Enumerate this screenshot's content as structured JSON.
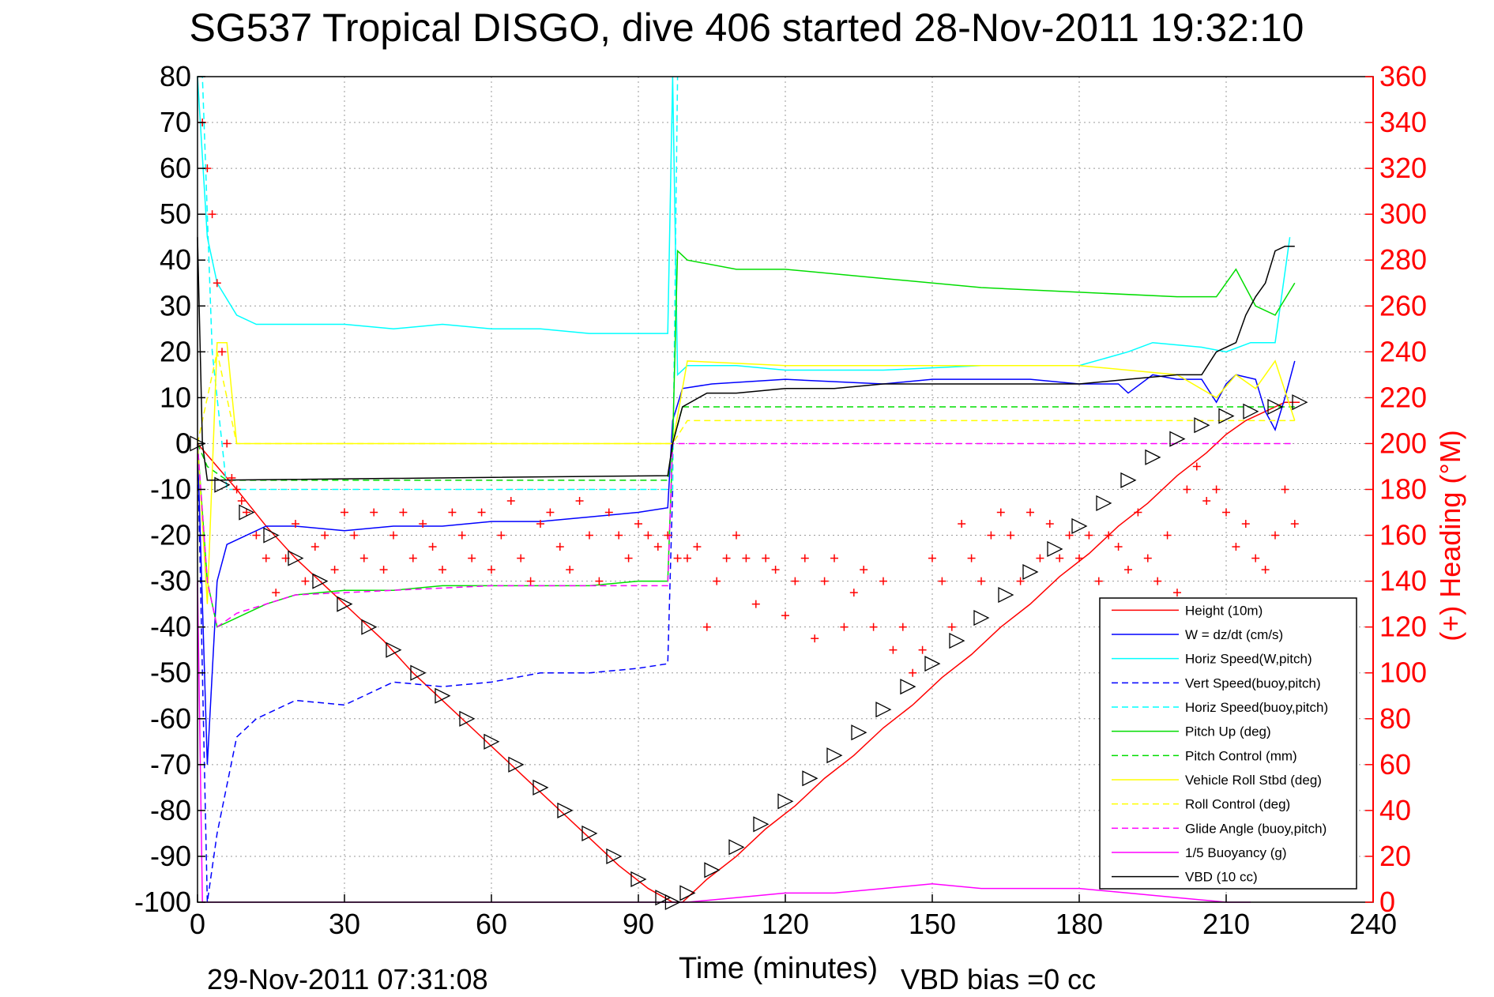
{
  "chart_data": {
    "type": "line",
    "title": "SG537 Tropical DISGO, dive 406 started 28-Nov-2011 19:32:10",
    "xlabel": "Time (minutes)",
    "ylabel_right": "(+) Heading (°M)",
    "footer_left": "29-Nov-2011 07:31:08",
    "footer_right": "VBD bias =0 cc",
    "xlim": [
      0,
      240
    ],
    "ylim": [
      -100,
      80
    ],
    "y2lim": [
      0,
      360
    ],
    "x_ticks": [
      0,
      30,
      60,
      90,
      120,
      150,
      180,
      210,
      240
    ],
    "y_ticks": [
      -100,
      -90,
      -80,
      -70,
      -60,
      -50,
      -40,
      -30,
      -20,
      -10,
      0,
      10,
      20,
      30,
      40,
      50,
      60,
      70,
      80
    ],
    "y2_ticks": [
      0,
      20,
      40,
      60,
      80,
      100,
      120,
      140,
      160,
      180,
      200,
      220,
      240,
      260,
      280,
      300,
      320,
      340,
      360
    ],
    "grid": true,
    "legend_position": "bottom-right",
    "colors": {
      "red": "#ff0000",
      "blue": "#0000ff",
      "cyan": "#00ffff",
      "green": "#00dd00",
      "yellow": "#ffff00",
      "magenta": "#ff00ff",
      "black": "#000000"
    },
    "series": [
      {
        "name": "Height (10m)",
        "color": "#ff0000",
        "style": "solid",
        "x": [
          0,
          8,
          14,
          20,
          26,
          32,
          38,
          44,
          50,
          56,
          62,
          68,
          74,
          80,
          86,
          92,
          97,
          99,
          104,
          110,
          116,
          122,
          128,
          134,
          140,
          146,
          152,
          158,
          164,
          170,
          176,
          182,
          188,
          194,
          200,
          206,
          210,
          214,
          218,
          222,
          225
        ],
        "y": [
          0,
          -10,
          -18,
          -25,
          -31,
          -37,
          -43,
          -50,
          -56,
          -62,
          -68,
          -74,
          -80,
          -86,
          -92,
          -97,
          -100,
          -100,
          -95,
          -90,
          -84,
          -79,
          -73,
          -68,
          -62,
          -57,
          -51,
          -46,
          -40,
          -35,
          -29,
          -24,
          -18,
          -13,
          -7,
          -2,
          2,
          5,
          7,
          9,
          9
        ]
      },
      {
        "name": "W = dz/dt (cm/s)",
        "color": "#0000ff",
        "style": "solid",
        "x": [
          0,
          2,
          4,
          6,
          10,
          14,
          20,
          30,
          40,
          50,
          60,
          70,
          80,
          90,
          96,
          97,
          99,
          105,
          120,
          140,
          150,
          160,
          170,
          180,
          188,
          190,
          195,
          200,
          205,
          208,
          210,
          212,
          216,
          218,
          220,
          222,
          224
        ],
        "y": [
          0,
          -70,
          -30,
          -22,
          -20,
          -18,
          -18,
          -19,
          -18,
          -18,
          -17,
          -17,
          -16,
          -15,
          -14,
          5,
          12,
          13,
          14,
          13,
          14,
          14,
          14,
          13,
          13,
          11,
          15,
          14,
          14,
          9,
          13,
          15,
          14,
          7,
          3,
          10,
          18
        ]
      },
      {
        "name": "Horiz Speed(W,pitch)",
        "color": "#00ffff",
        "style": "solid",
        "x": [
          0,
          2,
          4,
          8,
          12,
          20,
          30,
          40,
          50,
          60,
          70,
          80,
          90,
          96,
          97,
          98,
          100,
          110,
          120,
          140,
          160,
          180,
          190,
          195,
          205,
          210,
          215,
          220,
          223
        ],
        "y": [
          80,
          45,
          35,
          28,
          26,
          26,
          26,
          25,
          26,
          25,
          25,
          24,
          24,
          24,
          80,
          15,
          17,
          17,
          16,
          16,
          17,
          17,
          20,
          22,
          21,
          20,
          22,
          22,
          45
        ]
      },
      {
        "name": "Vert Speed(buoy,pitch)",
        "color": "#0000ff",
        "style": "dashed",
        "x": [
          0,
          2,
          4,
          8,
          12,
          16,
          20,
          30,
          40,
          50,
          60,
          70,
          80,
          90,
          96,
          97
        ],
        "y": [
          0,
          -100,
          -85,
          -64,
          -60,
          -58,
          -56,
          -57,
          -52,
          -53,
          -52,
          -50,
          -50,
          -49,
          -48,
          -10
        ]
      },
      {
        "name": "Horiz Speed(buoy,pitch)",
        "color": "#00ffff",
        "style": "dashed",
        "x": [
          0,
          1,
          3,
          6,
          97,
          98
        ],
        "y": [
          80,
          80,
          20,
          -10,
          -10,
          80
        ]
      },
      {
        "name": "Pitch Up (deg)",
        "color": "#00dd00",
        "style": "solid",
        "x": [
          0,
          2,
          4,
          8,
          14,
          20,
          30,
          40,
          50,
          60,
          70,
          80,
          90,
          96,
          97,
          98,
          100,
          110,
          120,
          140,
          160,
          180,
          200,
          208,
          212,
          216,
          220,
          224
        ],
        "y": [
          0,
          -30,
          -40,
          -38,
          -35,
          -33,
          -32,
          -32,
          -31,
          -31,
          -31,
          -31,
          -30,
          -30,
          0,
          42,
          40,
          38,
          38,
          36,
          34,
          33,
          32,
          32,
          38,
          30,
          28,
          35
        ]
      },
      {
        "name": "Pitch Control (mm)",
        "color": "#00dd00",
        "style": "dashed",
        "x": [
          0,
          2,
          6,
          96,
          97,
          99,
          210,
          224
        ],
        "y": [
          0,
          -5,
          -8,
          -8,
          0,
          8,
          8,
          8
        ]
      },
      {
        "name": "Vehicle Roll Stbd (deg)",
        "color": "#ffff00",
        "style": "solid",
        "x": [
          0,
          2,
          4,
          6,
          8,
          20,
          40,
          60,
          80,
          96,
          97,
          100,
          120,
          140,
          160,
          180,
          200,
          208,
          212,
          216,
          220,
          224
        ],
        "y": [
          0,
          -35,
          22,
          22,
          0,
          0,
          0,
          0,
          0,
          0,
          0,
          18,
          17,
          17,
          17,
          17,
          15,
          10,
          15,
          12,
          18,
          5
        ]
      },
      {
        "name": "Roll Control (deg)",
        "color": "#ffff00",
        "style": "dashed",
        "x": [
          0,
          4,
          8,
          96,
          97,
          100,
          200,
          224
        ],
        "y": [
          0,
          20,
          0,
          0,
          0,
          5,
          5,
          5
        ]
      },
      {
        "name": "Glide Angle (buoy,pitch)",
        "color": "#ff00ff",
        "style": "dashed",
        "x": [
          0,
          2,
          4,
          8,
          14,
          20,
          40,
          60,
          80,
          96,
          97,
          100,
          224
        ],
        "y": [
          0,
          -30,
          -40,
          -37,
          -35,
          -33,
          -32,
          -31,
          -31,
          -31,
          0,
          0,
          0
        ]
      },
      {
        "name": "1/5 Buoyancy (g)",
        "color": "#ff00ff",
        "style": "solid",
        "x": [
          0,
          1,
          2,
          98,
          100,
          110,
          120,
          130,
          140,
          150,
          160,
          170,
          180,
          190,
          200,
          210,
          215
        ],
        "y": [
          -30,
          -100,
          -100,
          -100,
          -100,
          -99,
          -98,
          -98,
          -97,
          -96,
          -97,
          -97,
          -97,
          -98,
          -99,
          -100,
          -100
        ]
      },
      {
        "name": "VBD (10 cc)",
        "color": "#000000",
        "style": "solid",
        "x": [
          0,
          1,
          2,
          96,
          97,
          99,
          104,
          110,
          120,
          130,
          140,
          150,
          160,
          170,
          180,
          190,
          200,
          205,
          208,
          212,
          214,
          216,
          218,
          220,
          222,
          224
        ],
        "y": [
          45,
          0,
          -8,
          -7,
          0,
          8,
          11,
          11,
          12,
          12,
          13,
          13,
          13,
          13,
          13,
          14,
          15,
          15,
          20,
          22,
          28,
          32,
          35,
          42,
          43,
          43
        ]
      }
    ],
    "heading_series": {
      "name": "(+) Heading (°M)",
      "color": "#ff0000",
      "marker": "+",
      "axis": "right",
      "x": [
        1,
        2,
        3,
        4,
        5,
        6,
        7,
        8,
        9,
        10,
        12,
        14,
        16,
        18,
        20,
        22,
        24,
        26,
        28,
        30,
        32,
        34,
        36,
        38,
        40,
        42,
        44,
        46,
        48,
        50,
        52,
        54,
        56,
        58,
        60,
        62,
        64,
        66,
        68,
        70,
        72,
        74,
        76,
        78,
        80,
        82,
        84,
        86,
        88,
        90,
        92,
        94,
        96,
        98,
        100,
        102,
        104,
        106,
        108,
        110,
        112,
        114,
        116,
        118,
        120,
        122,
        124,
        126,
        128,
        130,
        132,
        134,
        136,
        138,
        140,
        142,
        144,
        146,
        148,
        150,
        152,
        154,
        156,
        158,
        160,
        162,
        164,
        166,
        168,
        170,
        172,
        174,
        176,
        178,
        180,
        182,
        184,
        186,
        188,
        190,
        192,
        194,
        196,
        198,
        200,
        202,
        204,
        206,
        208,
        210,
        212,
        214,
        216,
        218,
        220,
        222,
        224
      ],
      "y": [
        340,
        320,
        300,
        270,
        240,
        200,
        185,
        180,
        175,
        170,
        160,
        150,
        135,
        150,
        165,
        140,
        155,
        160,
        145,
        170,
        160,
        150,
        170,
        145,
        160,
        170,
        150,
        165,
        155,
        145,
        170,
        160,
        150,
        170,
        145,
        160,
        175,
        150,
        140,
        165,
        170,
        155,
        145,
        175,
        160,
        140,
        170,
        160,
        150,
        165,
        160,
        155,
        160,
        150,
        150,
        155,
        120,
        140,
        150,
        160,
        150,
        130,
        150,
        145,
        125,
        140,
        150,
        115,
        140,
        150,
        120,
        135,
        145,
        120,
        140,
        110,
        120,
        100,
        110,
        150,
        140,
        120,
        165,
        150,
        140,
        160,
        170,
        160,
        140,
        170,
        150,
        165,
        150,
        160,
        150,
        160,
        140,
        160,
        155,
        145,
        170,
        150,
        140,
        160,
        135,
        180,
        190,
        175,
        180,
        170,
        155,
        165,
        150,
        145,
        160,
        180,
        165
      ]
    },
    "position_markers": {
      "marker": "triangle",
      "color": "#000000",
      "x": [
        0,
        5,
        10,
        15,
        20,
        25,
        30,
        35,
        40,
        45,
        50,
        55,
        60,
        65,
        70,
        75,
        80,
        85,
        90,
        95,
        97,
        100,
        105,
        110,
        115,
        120,
        125,
        130,
        135,
        140,
        145,
        150,
        155,
        160,
        165,
        170,
        175,
        180,
        185,
        190,
        195,
        200,
        205,
        210,
        215,
        220,
        225
      ],
      "y": [
        0,
        -9,
        -15,
        -20,
        -25,
        -30,
        -35,
        -40,
        -45,
        -50,
        -55,
        -60,
        -65,
        -70,
        -75,
        -80,
        -85,
        -90,
        -95,
        -99,
        -100,
        -98,
        -93,
        -88,
        -83,
        -78,
        -73,
        -68,
        -63,
        -58,
        -53,
        -48,
        -43,
        -38,
        -33,
        -28,
        -23,
        -18,
        -13,
        -8,
        -3,
        1,
        4,
        6,
        7,
        8,
        9
      ]
    }
  }
}
